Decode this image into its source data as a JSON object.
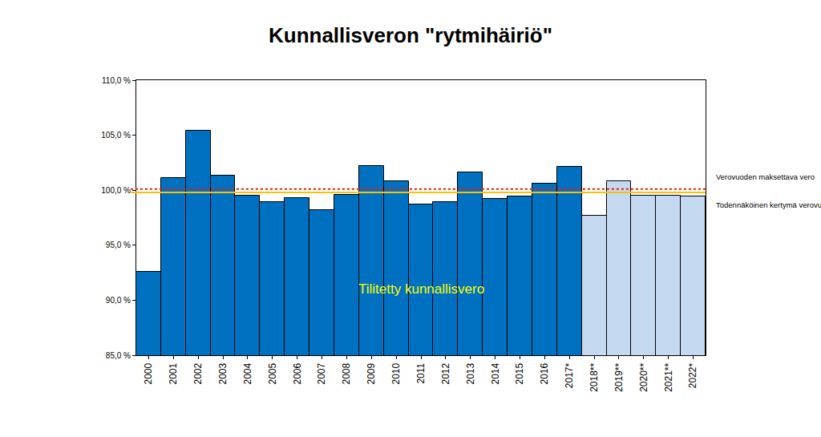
{
  "chart_data": {
    "type": "bar",
    "title": "Kunnallisveron \"rytmihäiriö\"",
    "categories": [
      "2000",
      "2001",
      "2002",
      "2003",
      "2004",
      "2005",
      "2006",
      "2007",
      "2008",
      "2009",
      "2010",
      "2011",
      "2012",
      "2013",
      "2014",
      "2015",
      "2016",
      "2017*",
      "2018**",
      "2019**",
      "2020**",
      "2021**",
      "2022*"
    ],
    "series": [
      {
        "name": "Tilitetty kunnallisvero",
        "values": [
          92.6,
          101.1,
          105.4,
          101.3,
          99.5,
          98.9,
          99.3,
          98.2,
          99.6,
          102.2,
          100.8,
          98.7,
          98.9,
          101.6,
          99.2,
          99.4,
          100.6,
          102.1,
          97.7,
          100.8,
          99.5,
          99.5,
          99.4
        ],
        "colors": [
          "#0070c0",
          "#0070c0",
          "#0070c0",
          "#0070c0",
          "#0070c0",
          "#0070c0",
          "#0070c0",
          "#0070c0",
          "#0070c0",
          "#0070c0",
          "#0070c0",
          "#0070c0",
          "#0070c0",
          "#0070c0",
          "#0070c0",
          "#0070c0",
          "#0070c0",
          "#0070c0",
          "#c5d9f1",
          "#c5d9f1",
          "#c5d9f1",
          "#c5d9f1",
          "#c5d9f1"
        ]
      }
    ],
    "lines": [
      {
        "name": "Verovuoden maksettava vero",
        "value": 100.1,
        "color": "#e02020",
        "line_style": "dot"
      },
      {
        "name": "Todennäköinen kertymä verovuodelta",
        "value": 99.8,
        "color": "#ffc000",
        "line_style": "solid"
      }
    ],
    "annotations": [
      {
        "text": "Tilitetty kunnallisvero",
        "category": "2011",
        "y": 91,
        "color": "#ffff00"
      }
    ],
    "ylim": [
      85,
      110
    ],
    "yticks": [
      {
        "value": 85,
        "label": "85,0 %"
      },
      {
        "value": 90,
        "label": "90,0 %"
      },
      {
        "value": 95,
        "label": "95,0 %"
      },
      {
        "value": 100,
        "label": "100,0 %"
      },
      {
        "value": 105,
        "label": "105,0 %"
      },
      {
        "value": 110,
        "label": "110,0 %"
      }
    ],
    "grid": false
  }
}
